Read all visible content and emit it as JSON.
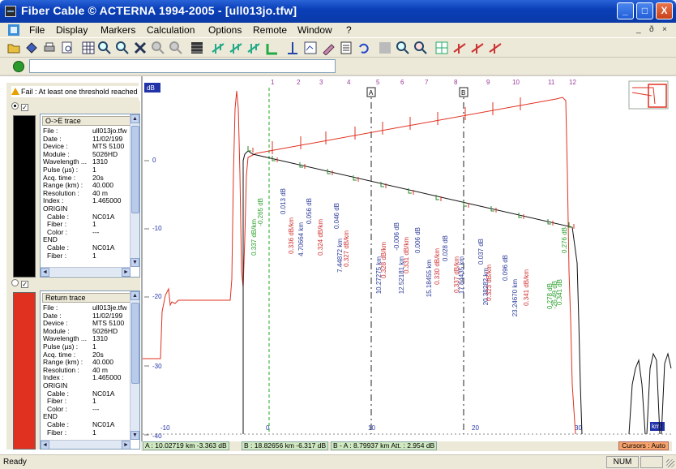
{
  "window": {
    "title": "Fiber Cable © ACTERNA 1994-2005 - [ull013jo.tfw]",
    "minimize": "_",
    "maximize": "□",
    "close": "X"
  },
  "menu": [
    "File",
    "Display",
    "Markers",
    "Calculation",
    "Options",
    "Remote",
    "Window",
    "?"
  ],
  "mdi_controls": [
    "_",
    "ð",
    "×"
  ],
  "warning": "Fail : At least one threshold reached",
  "traces": [
    {
      "name": "O->E trace",
      "color": "#000000",
      "selected": true,
      "checked": true,
      "fields": [
        {
          "k": "File :",
          "v": "ull013jo.tfw"
        },
        {
          "k": "Date :",
          "v": "11/02/199"
        },
        {
          "k": "Device :",
          "v": "MTS 5100"
        },
        {
          "k": "Module :",
          "v": "5026HD"
        },
        {
          "k": "Wavelength ...",
          "v": "1310"
        },
        {
          "k": "Pulse (µs) :",
          "v": "1"
        },
        {
          "k": "Acq. time :",
          "v": "20s"
        },
        {
          "k": "Range (km) :",
          "v": "40.000"
        },
        {
          "k": "Resolution :",
          "v": "40 m"
        },
        {
          "k": "Index :",
          "v": "1.465000"
        },
        {
          "k": "ORIGIN",
          "v": ""
        },
        {
          "k": "Cable :",
          "v": "NC01A",
          "sub": true
        },
        {
          "k": "Fiber :",
          "v": "1",
          "sub": true
        },
        {
          "k": "Color :",
          "v": "---",
          "sub": true
        },
        {
          "k": "END",
          "v": ""
        },
        {
          "k": "Cable :",
          "v": "NC01A",
          "sub": true
        },
        {
          "k": "Fiber :",
          "v": "1",
          "sub": true
        }
      ]
    },
    {
      "name": "Return trace",
      "color": "#e03020",
      "selected": false,
      "checked": true,
      "fields": [
        {
          "k": "File :",
          "v": "ull013je.tfw"
        },
        {
          "k": "Date :",
          "v": "11/02/199"
        },
        {
          "k": "Device :",
          "v": "MTS 5100"
        },
        {
          "k": "Module :",
          "v": "5026HD"
        },
        {
          "k": "Wavelength ...",
          "v": "1310"
        },
        {
          "k": "Pulse (µs) :",
          "v": "1"
        },
        {
          "k": "Acq. time :",
          "v": "20s"
        },
        {
          "k": "Range (km) :",
          "v": "40.000"
        },
        {
          "k": "Resolution :",
          "v": "40 m"
        },
        {
          "k": "Index :",
          "v": "1.465000"
        },
        {
          "k": "ORIGIN",
          "v": ""
        },
        {
          "k": "Cable :",
          "v": "NC01A",
          "sub": true
        },
        {
          "k": "Fiber :",
          "v": "1",
          "sub": true
        },
        {
          "k": "Color :",
          "v": "---",
          "sub": true
        },
        {
          "k": "END",
          "v": ""
        },
        {
          "k": "Cable :",
          "v": "NC01A",
          "sub": true
        },
        {
          "k": "Fiber :",
          "v": "1",
          "sub": true
        }
      ]
    }
  ],
  "plot": {
    "y_unit": "dB",
    "x_unit": "km",
    "y_ticks": [
      "0",
      "-10",
      "-20",
      "-30",
      "-40"
    ],
    "x_ticks_bottom": [
      "-10",
      "0",
      "10",
      "20",
      "30"
    ],
    "x_ticks_top": [
      "1",
      "2",
      "3",
      "4",
      "5",
      "6",
      "7",
      "8",
      "9",
      "10",
      "11",
      "12"
    ],
    "cursor_a": "A",
    "cursor_b": "B",
    "labels_green": [
      "0.337 dB/km",
      "-0.265 dB",
      "0.278 dB",
      "-26.49 dB",
      "0.341 dB",
      "0.276 dB"
    ],
    "labels_blue": [
      "0.013 dB",
      "4.70664 km",
      "0.056 dB",
      "0.046 dB",
      "7.44872 km",
      "10.27275 km",
      "-0.006 dB",
      "12.52181 km",
      "0.006 dB",
      "15.18455 km",
      "0.028 dB",
      "17.84435 km",
      "0.037 dB",
      "20.38282 km",
      "0.096 dB",
      "23.24670 km"
    ],
    "labels_red": [
      "0.336 dB/km",
      "0.324 dB/km",
      "0.327 dB/km",
      "0.328 dB/km",
      "0.331 dB/km",
      "0.330 dB/km",
      "0.337 dB/km",
      "0.341 dB/km",
      "0.323 dB/km"
    ]
  },
  "cursorbar": {
    "a": "A : 10.02719 km  -3.363 dB",
    "b": "B : 18.82656 km  -6.317 dB",
    "ba": "B - A : 8.79937 km  Att. : 2.954 dB",
    "mode": "Cursors : Auto"
  },
  "status": {
    "text": "Ready",
    "num": "NUM"
  }
}
